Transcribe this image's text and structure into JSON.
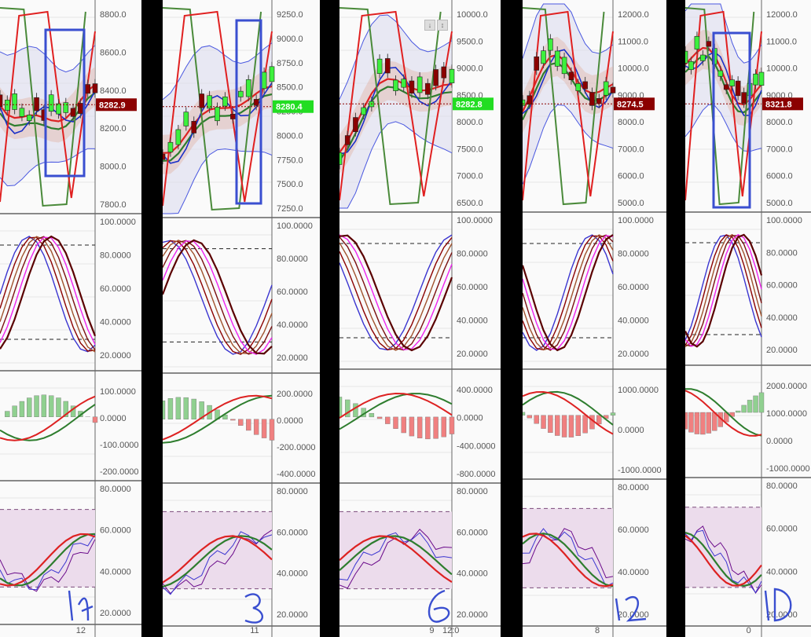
{
  "columns": [
    {
      "id": "1h",
      "timeframe_label": "1h",
      "price_ticks": [
        "8800.0",
        "8600.0",
        "8400.0",
        "8200.0",
        "8000.0",
        "7800.0"
      ],
      "price_badge": "8282.9",
      "stoch_ticks": [
        "100.0000",
        "80.0000",
        "60.0000",
        "40.0000",
        "20.0000"
      ],
      "macd_ticks": [
        "100.0000",
        "0.0000",
        "-100.0000",
        "-200.0000"
      ],
      "rsi_ticks": [
        "80.0000",
        "60.0000",
        "40.0000",
        "20.0000"
      ],
      "time_label": "12"
    },
    {
      "id": "3h",
      "timeframe_label": "3",
      "price_ticks": [
        "9250.0",
        "9000.0",
        "8750.0",
        "8500.0",
        "8250.0",
        "8000.0",
        "7750.0",
        "7500.0",
        "7250.0"
      ],
      "price_badge": "8280.4",
      "stoch_ticks": [
        "100.0000",
        "80.0000",
        "60.0000",
        "40.0000",
        "20.0000"
      ],
      "macd_ticks": [
        "200.0000",
        "0.0000",
        "-200.0000",
        "-400.0000"
      ],
      "rsi_ticks": [
        "80.0000",
        "60.0000",
        "40.0000",
        "20.0000"
      ],
      "time_label": "11"
    },
    {
      "id": "6h",
      "timeframe_label": "6",
      "price_ticks": [
        "10000.0",
        "9500.0",
        "9000.0",
        "8500.0",
        "8000.0",
        "7500.0",
        "7000.0",
        "6500.0"
      ],
      "price_badge": "8282.8",
      "stoch_ticks": [
        "100.0000",
        "80.0000",
        "60.0000",
        "40.0000",
        "20.0000"
      ],
      "macd_ticks": [
        "400.0000",
        "0.0000",
        "-400.0000",
        "-800.0000"
      ],
      "rsi_ticks": [
        "80.0000",
        "60.0000",
        "40.0000",
        "20.0000"
      ],
      "time_label": "9",
      "time_label_2": "12:0"
    },
    {
      "id": "12h",
      "timeframe_label": "12",
      "price_ticks": [
        "12000.0",
        "11000.0",
        "10000.0",
        "9000.0",
        "8000.0",
        "7000.0",
        "6000.0",
        "5000.0"
      ],
      "price_badge": "8274.5",
      "stoch_ticks": [
        "100.0000",
        "80.0000",
        "60.0000",
        "40.0000",
        "20.0000"
      ],
      "macd_ticks": [
        "1000.0000",
        "0.0000",
        "-1000.0000"
      ],
      "rsi_ticks": [
        "80.0000",
        "60.0000",
        "40.0000",
        "20.0000"
      ],
      "time_label": "8"
    },
    {
      "id": "1D",
      "timeframe_label": "1D",
      "price_ticks": [
        "12000.0",
        "11000.0",
        "10000.0",
        "9000.0",
        "8000.0",
        "7000.0",
        "6000.0",
        "5000.0"
      ],
      "price_badge": "8321.8",
      "stoch_ticks": [
        "100.0000",
        "80.0000",
        "60.0000",
        "40.0000",
        "20.0000"
      ],
      "macd_ticks": [
        "2000.0000",
        "1000.0000",
        "0.0000",
        "-1000.0000"
      ],
      "rsi_ticks": [
        "80.0000",
        "60.0000",
        "40.0000",
        "20.0000"
      ],
      "time_label": "0"
    }
  ],
  "colors": {
    "badge_red": "#8b0000",
    "badge_green": "#22dd22",
    "annotation_blue": "#3a4fd0",
    "bull_candle": "#3df03d",
    "bear_candle": "#8b0000"
  }
}
